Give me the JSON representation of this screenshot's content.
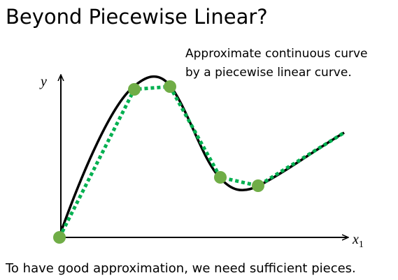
{
  "title": "Beyond Piecewise Linear?",
  "annotation": [
    "Approximate continuous curve",
    "by a piecewise linear curve."
  ],
  "axes": {
    "y": "y",
    "x": "x",
    "x_subscript": "1"
  },
  "footer": "To have good approximation, we need sufficient pieces."
}
